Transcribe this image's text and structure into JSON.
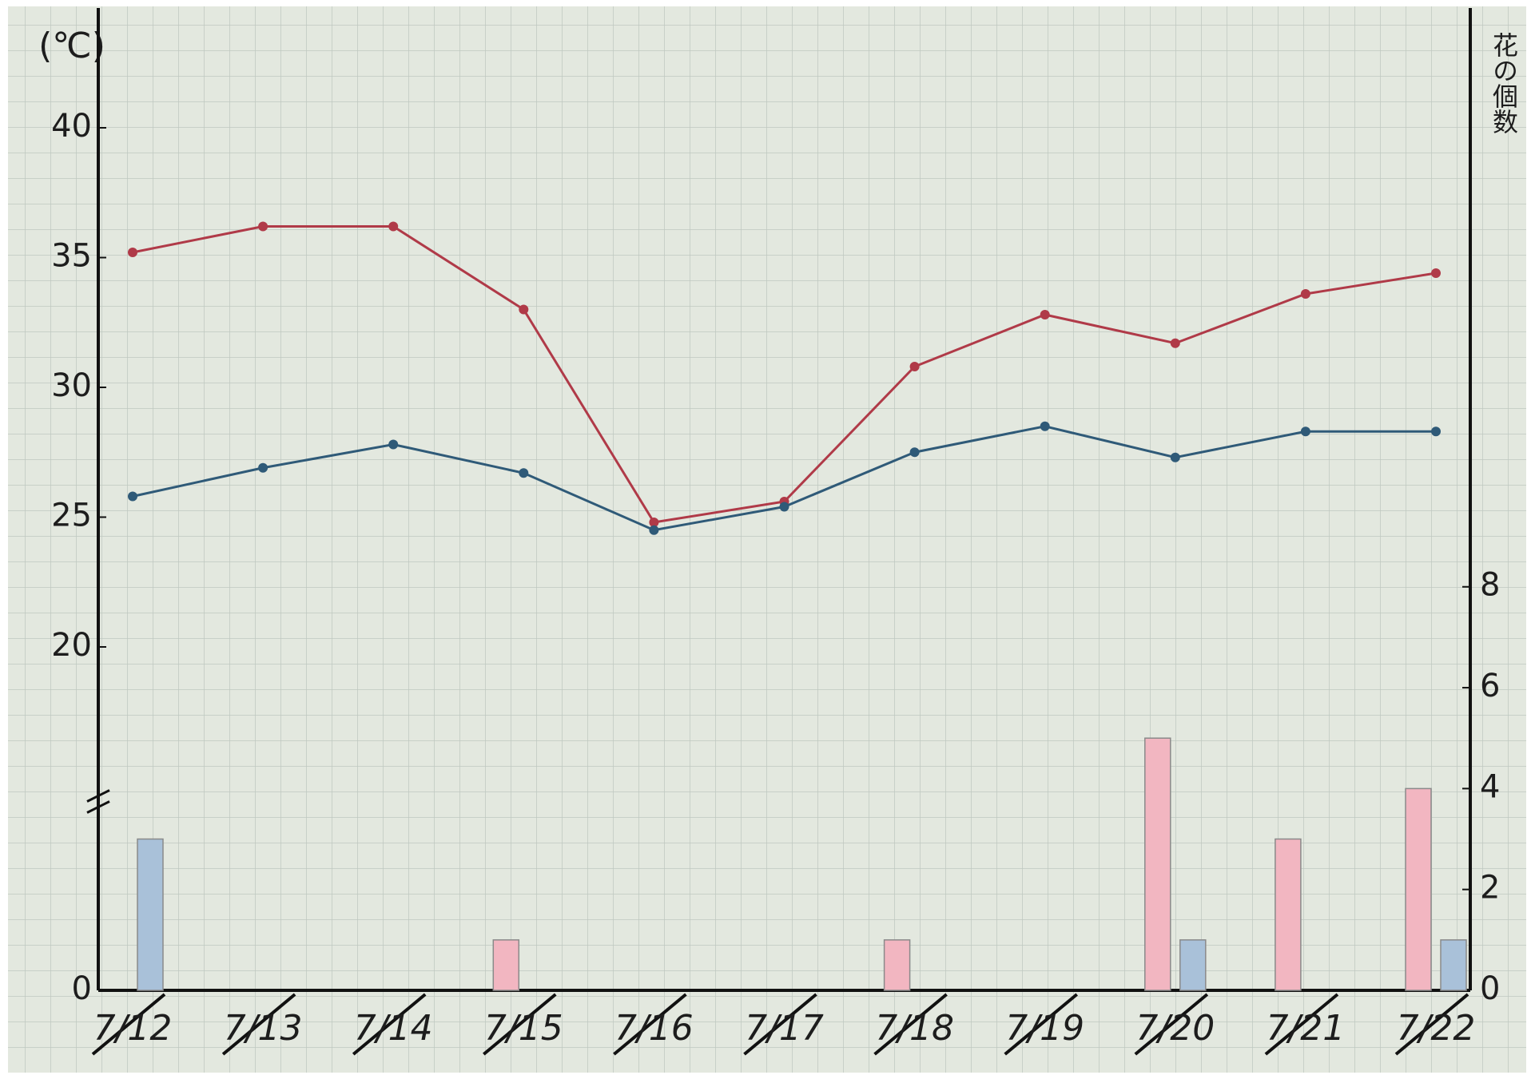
{
  "chart_data": {
    "type": "combo",
    "y_label": "(℃)",
    "y2_label": "花の個数",
    "categories": [
      "7/12",
      "7/13",
      "7/14",
      "7/15",
      "7/16",
      "7/17",
      "7/18",
      "7/19",
      "7/20",
      "7/21",
      "7/22"
    ],
    "ylim": [
      0,
      44
    ],
    "yticks": [
      0,
      20,
      25,
      30,
      35,
      40
    ],
    "y_break": true,
    "y2lim": [
      0,
      19
    ],
    "y2ticks": [
      0,
      2,
      4,
      6,
      8
    ],
    "series": [
      {
        "type": "line",
        "color": "#b03a48",
        "values": [
          35.2,
          36.2,
          36.2,
          33.0,
          24.8,
          25.6,
          30.8,
          32.8,
          31.7,
          33.6,
          34.4
        ]
      },
      {
        "type": "line",
        "color": "#2f5a78",
        "values": [
          25.8,
          26.9,
          27.8,
          26.7,
          24.5,
          25.4,
          27.5,
          28.5,
          27.3,
          28.3,
          28.3
        ]
      },
      {
        "type": "bar",
        "axis": "y2",
        "color": "#f2b6c1",
        "values": [
          0,
          0,
          0,
          1,
          0,
          0,
          1,
          0,
          5,
          3,
          4
        ]
      },
      {
        "type": "bar",
        "axis": "y2",
        "color": "#a9c1d9",
        "values": [
          3,
          0,
          0,
          0,
          0,
          0,
          0,
          0,
          1,
          0,
          1
        ]
      }
    ]
  }
}
